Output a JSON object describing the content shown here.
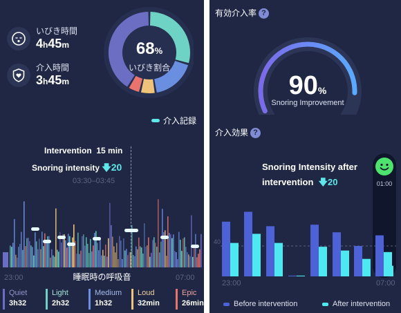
{
  "colors": {
    "panel_bg": "#1f2744",
    "quiet": "#6c6ec4",
    "light": "#6ed3c4",
    "medium": "#6a8fe0",
    "loud": "#efc47a",
    "epic": "#e9746e",
    "before": "#4e62d8",
    "after": "#4ee8f0",
    "accent": "#5ee6e8"
  },
  "left": {
    "snore_time": {
      "label": "いびき時間",
      "h": "4",
      "m": "45",
      "h_unit": "h",
      "m_unit": "m",
      "icon": "sleeping-face-icon"
    },
    "intervention_time": {
      "label": "介入時間",
      "h": "3",
      "m": "45",
      "h_unit": "h",
      "m_unit": "m",
      "icon": "heart-shield-icon"
    },
    "donut": {
      "percent": "68",
      "unit": "%",
      "label": "いびき割合"
    },
    "legend_label": "介入記録",
    "tooltip": {
      "intervention_label": "Intervention",
      "intervention_value": "15 min",
      "snoring_label": "Snoring intensity",
      "snoring_value": "20",
      "time_range": "03:30–03:45"
    },
    "chart_title": "睡眠時の呼吸音",
    "time_start": "23:00",
    "time_end": "07:00",
    "categories": [
      {
        "name": "Quiet",
        "value": "3h32"
      },
      {
        "name": "Light",
        "value": "2h32"
      },
      {
        "name": "Medium",
        "value": "1h32"
      },
      {
        "name": "Loud",
        "value": "32min"
      },
      {
        "name": "Epic",
        "value": "26min"
      }
    ]
  },
  "right": {
    "rate_title": "有効介入率",
    "gauge": {
      "percent": "90",
      "unit": "%",
      "label": "Snoring Improvement",
      "fraction": 0.9
    },
    "effect_title": "介入効果",
    "annotation": {
      "line1": "Snoring Intensity after",
      "line2": "intervention",
      "value": "20",
      "time": "01:00"
    },
    "time_start": "23:00",
    "time_end": "07:00"
  },
  "chart_data": [
    {
      "type": "pie",
      "categories": [
        "Quiet",
        "Light",
        "Medium",
        "Loud",
        "Epic"
      ],
      "values": [
        3.53,
        2.53,
        1.53,
        0.53,
        0.43
      ]
    },
    {
      "type": "bar",
      "x": [
        "23:00",
        "",
        "",
        "",
        "",
        "",
        "",
        "",
        "07:00"
      ],
      "ylim": [
        0,
        100
      ],
      "reference_line": 40,
      "series": [
        {
          "name": "Before intervention",
          "values": [
            72,
            85,
            66,
            1,
            68,
            58,
            40,
            50,
            54
          ]
        },
        {
          "name": "After intervention",
          "values": [
            44,
            56,
            44,
            1,
            39,
            34,
            23,
            32,
            14
          ]
        }
      ]
    }
  ]
}
